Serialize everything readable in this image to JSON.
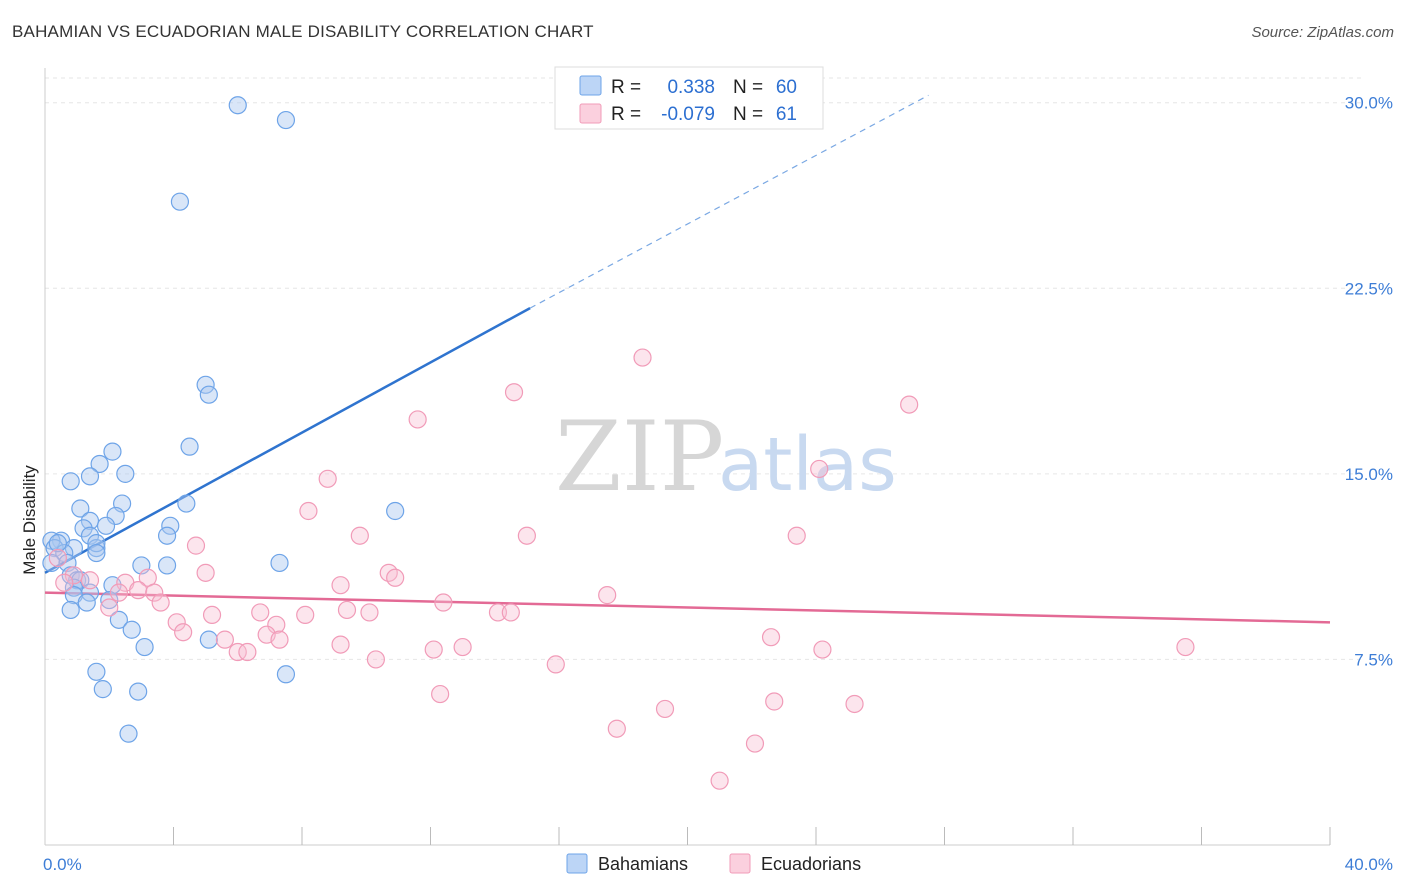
{
  "header": {
    "title": "BAHAMIAN VS ECUADORIAN MALE DISABILITY CORRELATION CHART",
    "source": "Source: ZipAtlas.com"
  },
  "watermark": {
    "zip": "ZIP",
    "atlas": "atlas"
  },
  "legend": {
    "rows": [
      {
        "r_label": "R =",
        "r_value": "0.338",
        "n_label": "N =",
        "n_value": "60",
        "color": "#6ea4e8"
      },
      {
        "r_label": "R =",
        "r_value": "-0.079",
        "n_label": "N =",
        "n_value": "61",
        "color": "#f19bb8"
      }
    ]
  },
  "bottom_legend": {
    "bahamians": "Bahamians",
    "ecuadorians": "Ecuadorians"
  },
  "chart_data": {
    "type": "scatter",
    "title": "BAHAMIAN VS ECUADORIAN MALE DISABILITY CORRELATION CHART",
    "xlabel": "",
    "ylabel": "Male Disability",
    "xlim": [
      0,
      40
    ],
    "ylim": [
      0,
      31
    ],
    "x_tick_labels": [
      "0.0%",
      "40.0%"
    ],
    "y_ticks": [
      7.5,
      15.0,
      22.5,
      30.0
    ],
    "y_tick_labels": [
      "7.5%",
      "15.0%",
      "22.5%",
      "30.0%"
    ],
    "grid": true,
    "legend_position": "top-center",
    "series": [
      {
        "name": "Bahamians",
        "color": "#6ea4e8",
        "trend": {
          "x": [
            0.0,
            15.1
          ],
          "y": [
            11.0,
            21.7
          ],
          "dashed_to": [
            27.5,
            30.3
          ]
        },
        "points": [
          [
            6.0,
            29.9
          ],
          [
            7.5,
            29.3
          ],
          [
            4.2,
            26.0
          ],
          [
            5.0,
            18.6
          ],
          [
            5.1,
            18.2
          ],
          [
            4.5,
            16.1
          ],
          [
            2.1,
            15.9
          ],
          [
            1.7,
            15.4
          ],
          [
            2.5,
            15.0
          ],
          [
            1.4,
            14.9
          ],
          [
            0.8,
            14.7
          ],
          [
            2.4,
            13.8
          ],
          [
            4.4,
            13.8
          ],
          [
            1.1,
            13.6
          ],
          [
            10.9,
            13.5
          ],
          [
            2.2,
            13.3
          ],
          [
            1.4,
            13.1
          ],
          [
            3.9,
            12.9
          ],
          [
            1.9,
            12.9
          ],
          [
            1.2,
            12.8
          ],
          [
            3.8,
            12.5
          ],
          [
            1.4,
            12.5
          ],
          [
            0.5,
            12.3
          ],
          [
            0.2,
            12.3
          ],
          [
            0.3,
            12.0
          ],
          [
            0.9,
            12.0
          ],
          [
            1.6,
            12.0
          ],
          [
            1.6,
            12.2
          ],
          [
            0.6,
            11.8
          ],
          [
            0.4,
            12.2
          ],
          [
            1.6,
            11.8
          ],
          [
            0.2,
            11.4
          ],
          [
            0.7,
            11.4
          ],
          [
            3.0,
            11.3
          ],
          [
            3.8,
            11.3
          ],
          [
            7.3,
            11.4
          ],
          [
            0.8,
            10.9
          ],
          [
            1.0,
            10.7
          ],
          [
            1.1,
            10.7
          ],
          [
            0.9,
            10.4
          ],
          [
            2.1,
            10.5
          ],
          [
            1.4,
            10.2
          ],
          [
            0.9,
            10.1
          ],
          [
            2.0,
            9.9
          ],
          [
            1.3,
            9.8
          ],
          [
            0.8,
            9.5
          ],
          [
            2.3,
            9.1
          ],
          [
            2.7,
            8.7
          ],
          [
            5.1,
            8.3
          ],
          [
            3.1,
            8.0
          ],
          [
            1.6,
            7.0
          ],
          [
            7.5,
            6.9
          ],
          [
            1.8,
            6.3
          ],
          [
            2.9,
            6.2
          ],
          [
            2.6,
            4.5
          ]
        ]
      },
      {
        "name": "Ecuadorians",
        "color": "#f19bb8",
        "trend": {
          "x": [
            0.0,
            40.0
          ],
          "y": [
            10.2,
            9.0
          ]
        },
        "points": [
          [
            18.6,
            19.7
          ],
          [
            14.6,
            18.3
          ],
          [
            26.9,
            17.8
          ],
          [
            11.6,
            17.2
          ],
          [
            24.1,
            15.2
          ],
          [
            8.8,
            14.8
          ],
          [
            8.2,
            13.5
          ],
          [
            9.8,
            12.5
          ],
          [
            15.0,
            12.5
          ],
          [
            23.4,
            12.5
          ],
          [
            4.7,
            12.1
          ],
          [
            0.4,
            11.6
          ],
          [
            5.0,
            11.0
          ],
          [
            10.7,
            11.0
          ],
          [
            10.9,
            10.8
          ],
          [
            3.2,
            10.8
          ],
          [
            0.9,
            10.9
          ],
          [
            0.6,
            10.6
          ],
          [
            2.5,
            10.6
          ],
          [
            1.4,
            10.7
          ],
          [
            9.2,
            10.5
          ],
          [
            2.9,
            10.3
          ],
          [
            3.4,
            10.2
          ],
          [
            17.5,
            10.1
          ],
          [
            2.3,
            10.2
          ],
          [
            3.6,
            9.8
          ],
          [
            12.4,
            9.8
          ],
          [
            2.0,
            9.6
          ],
          [
            9.4,
            9.5
          ],
          [
            10.1,
            9.4
          ],
          [
            14.1,
            9.4
          ],
          [
            14.5,
            9.4
          ],
          [
            6.7,
            9.4
          ],
          [
            8.1,
            9.3
          ],
          [
            5.2,
            9.3
          ],
          [
            4.1,
            9.0
          ],
          [
            7.2,
            8.9
          ],
          [
            4.3,
            8.6
          ],
          [
            6.9,
            8.5
          ],
          [
            7.3,
            8.3
          ],
          [
            5.6,
            8.3
          ],
          [
            9.2,
            8.1
          ],
          [
            13.0,
            8.0
          ],
          [
            22.6,
            8.4
          ],
          [
            24.2,
            7.9
          ],
          [
            35.5,
            8.0
          ],
          [
            6.0,
            7.8
          ],
          [
            12.1,
            7.9
          ],
          [
            6.3,
            7.8
          ],
          [
            10.3,
            7.5
          ],
          [
            15.9,
            7.3
          ],
          [
            12.3,
            6.1
          ],
          [
            19.3,
            5.5
          ],
          [
            22.7,
            5.8
          ],
          [
            25.2,
            5.7
          ],
          [
            17.8,
            4.7
          ],
          [
            22.1,
            4.1
          ],
          [
            21.0,
            2.6
          ]
        ]
      }
    ]
  }
}
